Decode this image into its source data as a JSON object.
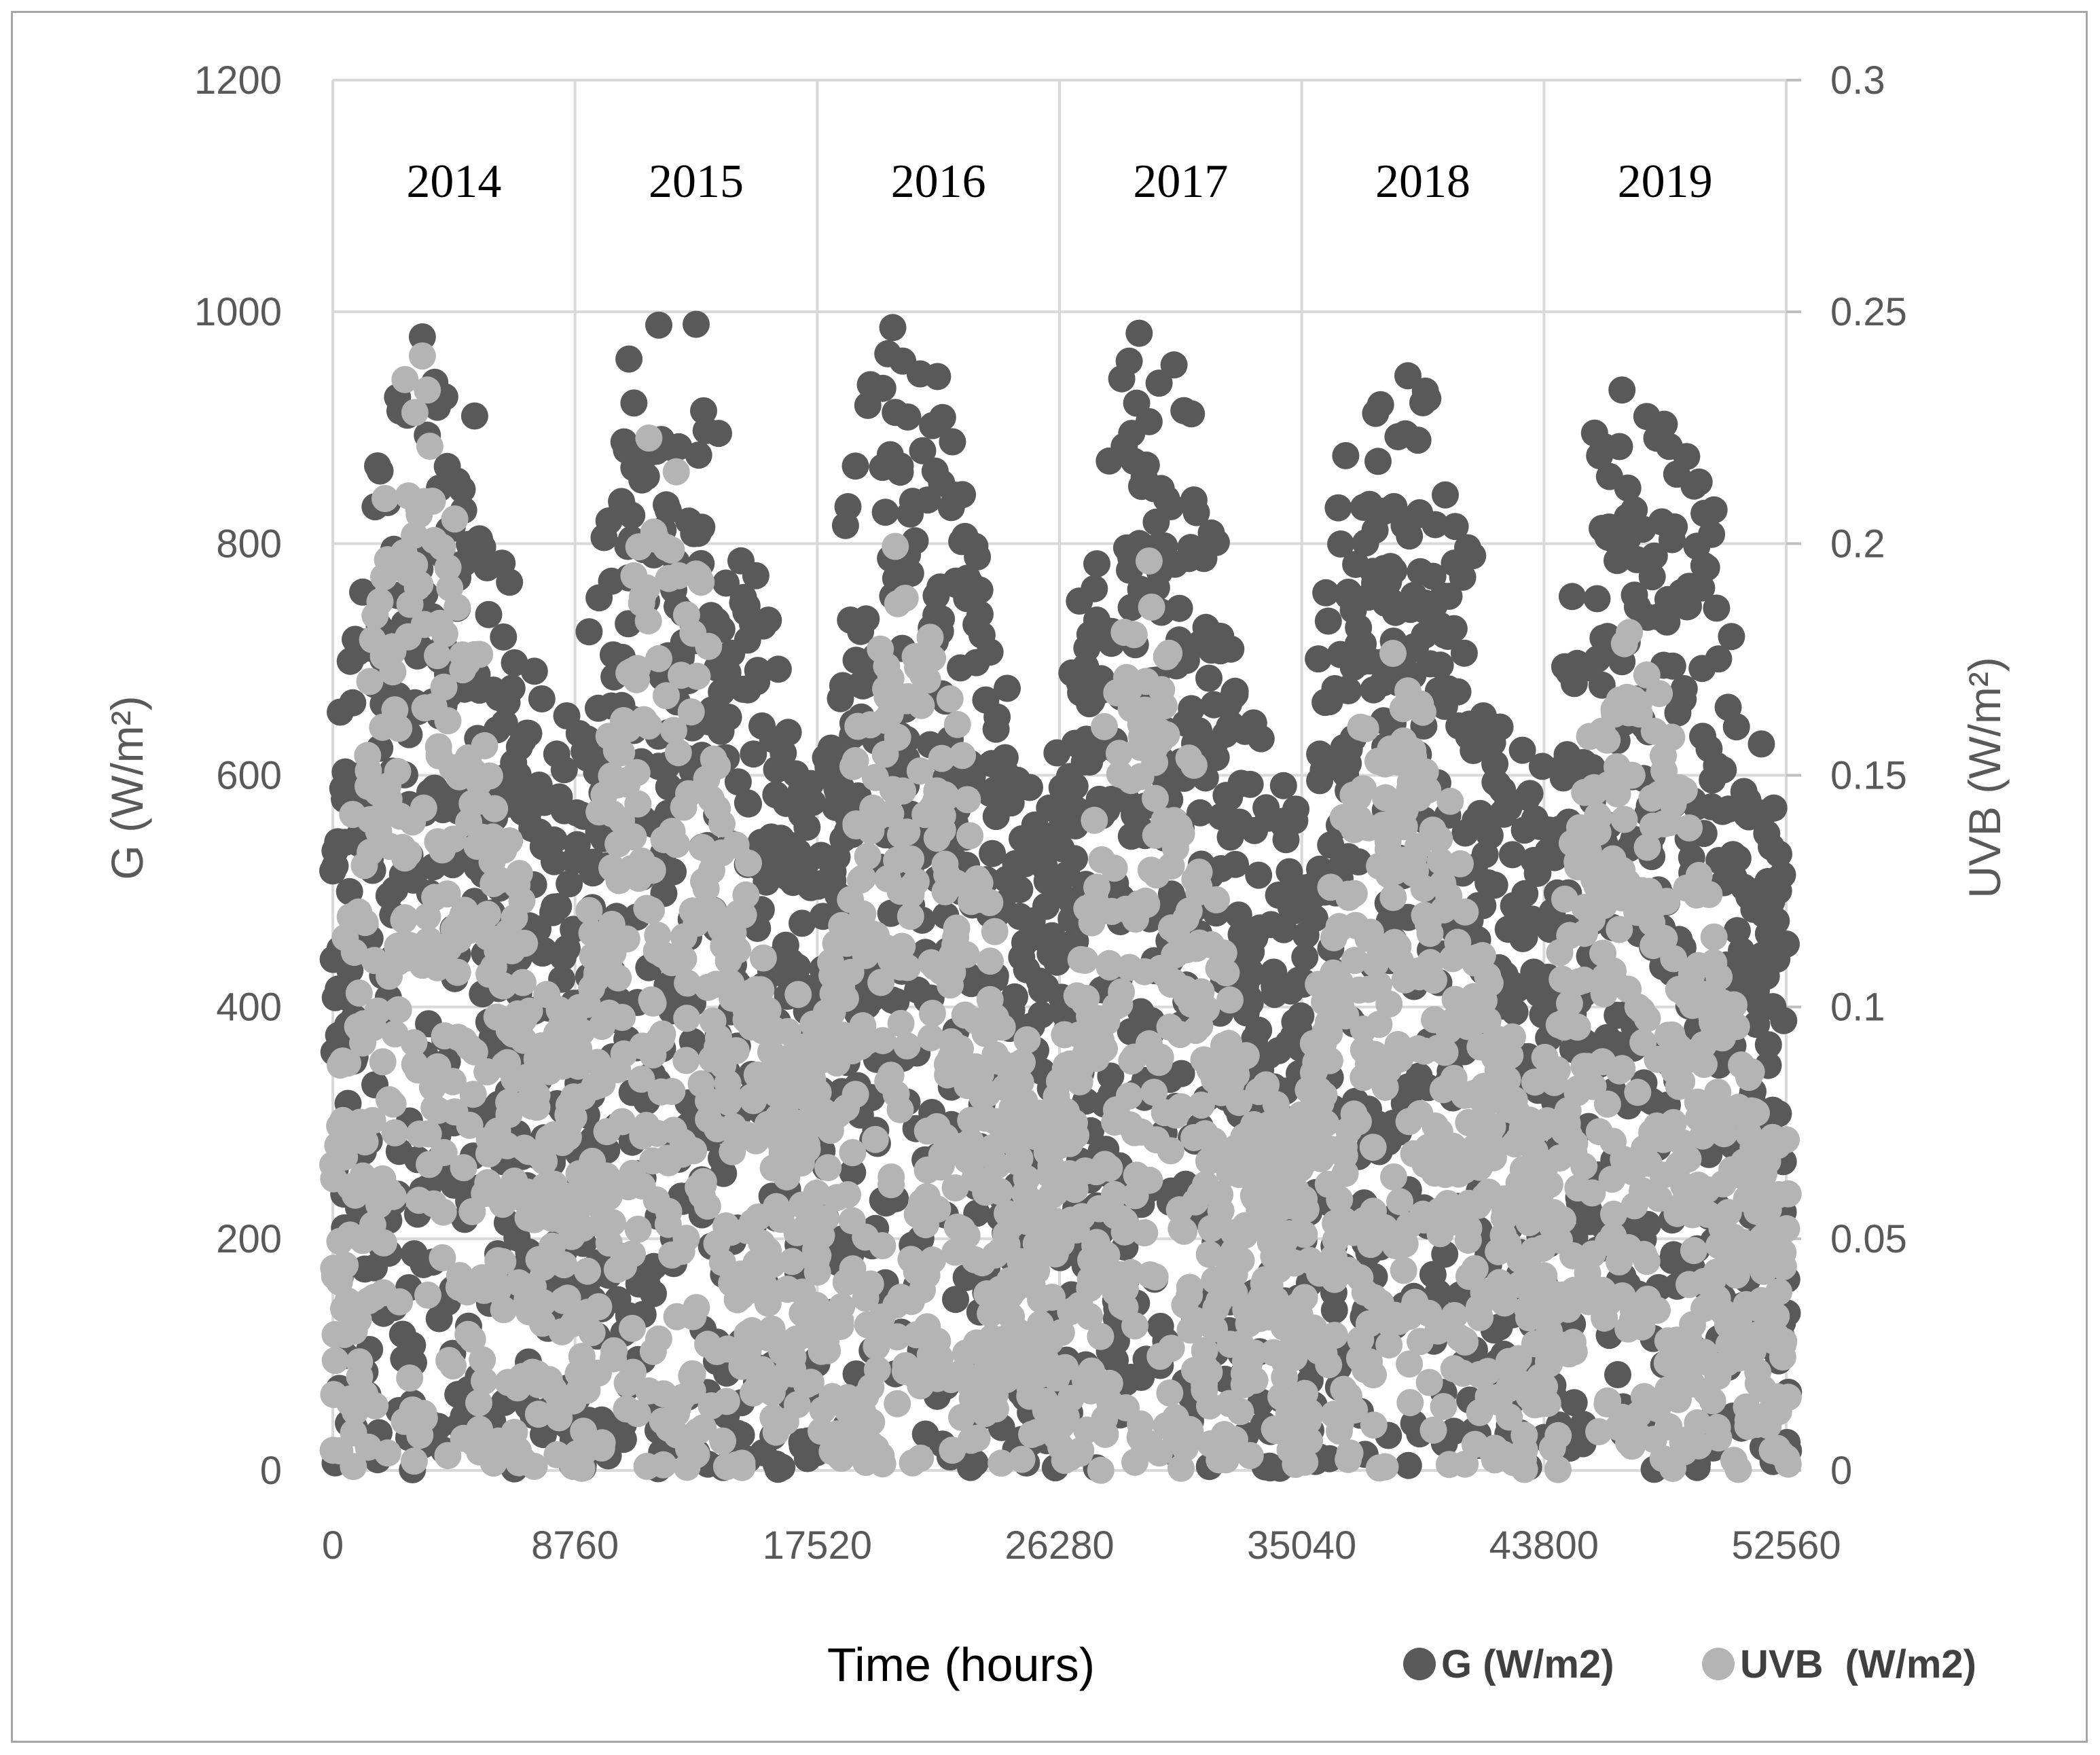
{
  "chart_data": {
    "type": "scatter",
    "xlabel": "Time (hours)",
    "ylabel": "G (W/m²)",
    "y2label": "UVB (W/m²)",
    "xlim": [
      0,
      52560
    ],
    "ylim": [
      0,
      1200
    ],
    "y2lim": [
      0,
      0.3
    ],
    "x_ticks": [
      "0",
      "8760",
      "17520",
      "26280",
      "35040",
      "43800",
      "52560"
    ],
    "y_ticks": [
      "0",
      "200",
      "400",
      "600",
      "800",
      "1000",
      "1200"
    ],
    "y2_ticks": [
      "0",
      "0.05",
      "0.1",
      "0.15",
      "0.2",
      "0.25",
      "0.3"
    ],
    "grid": true,
    "legend_position": "bottom-right",
    "year_labels": [
      "2014",
      "2015",
      "2016",
      "2017",
      "2018",
      "2019"
    ],
    "series": [
      {
        "name": "G (W/m2)",
        "axis": "left",
        "color": "#595959",
        "envelope_x": [
          0,
          1460,
          2920,
          4380,
          5840,
          7300,
          8760,
          10220,
          11680,
          13140,
          14600,
          16060,
          17520,
          18980,
          20440,
          21900,
          23360,
          24820,
          26280,
          27740,
          29200,
          30660,
          32120,
          33580,
          35040,
          36500,
          37960,
          39420,
          40880,
          42340,
          43800,
          45260,
          46720,
          48180,
          49640,
          51100,
          52560
        ],
        "envelope_max": [
          600,
          900,
          990,
          980,
          880,
          700,
          640,
          930,
          1020,
          1000,
          880,
          700,
          640,
          920,
          1000,
          960,
          840,
          640,
          620,
          900,
          990,
          950,
          830,
          650,
          620,
          880,
          970,
          950,
          850,
          640,
          620,
          880,
          970,
          960,
          870,
          680,
          580
        ]
      },
      {
        "name": "UVB  (W/m2)",
        "axis": "right",
        "color": "#b4b4b4",
        "envelope_x": [
          0,
          1460,
          2920,
          4380,
          5840,
          7300,
          8760,
          10220,
          11680,
          13140,
          14600,
          16060,
          17520,
          18980,
          20440,
          21900,
          23360,
          24820,
          26280,
          27740,
          29200,
          30660,
          32120,
          33580,
          35040,
          36500,
          37960,
          39420,
          40880,
          42340,
          43800,
          45260,
          46720,
          48180,
          49640,
          51100,
          52560
        ],
        "envelope_max": [
          0.075,
          0.21,
          0.248,
          0.215,
          0.16,
          0.11,
          0.1,
          0.175,
          0.235,
          0.2,
          0.14,
          0.11,
          0.1,
          0.17,
          0.206,
          0.185,
          0.14,
          0.095,
          0.09,
          0.16,
          0.205,
          0.17,
          0.12,
          0.085,
          0.08,
          0.145,
          0.183,
          0.175,
          0.13,
          0.095,
          0.09,
          0.16,
          0.193,
          0.17,
          0.13,
          0.09,
          0.075
        ]
      }
    ]
  }
}
